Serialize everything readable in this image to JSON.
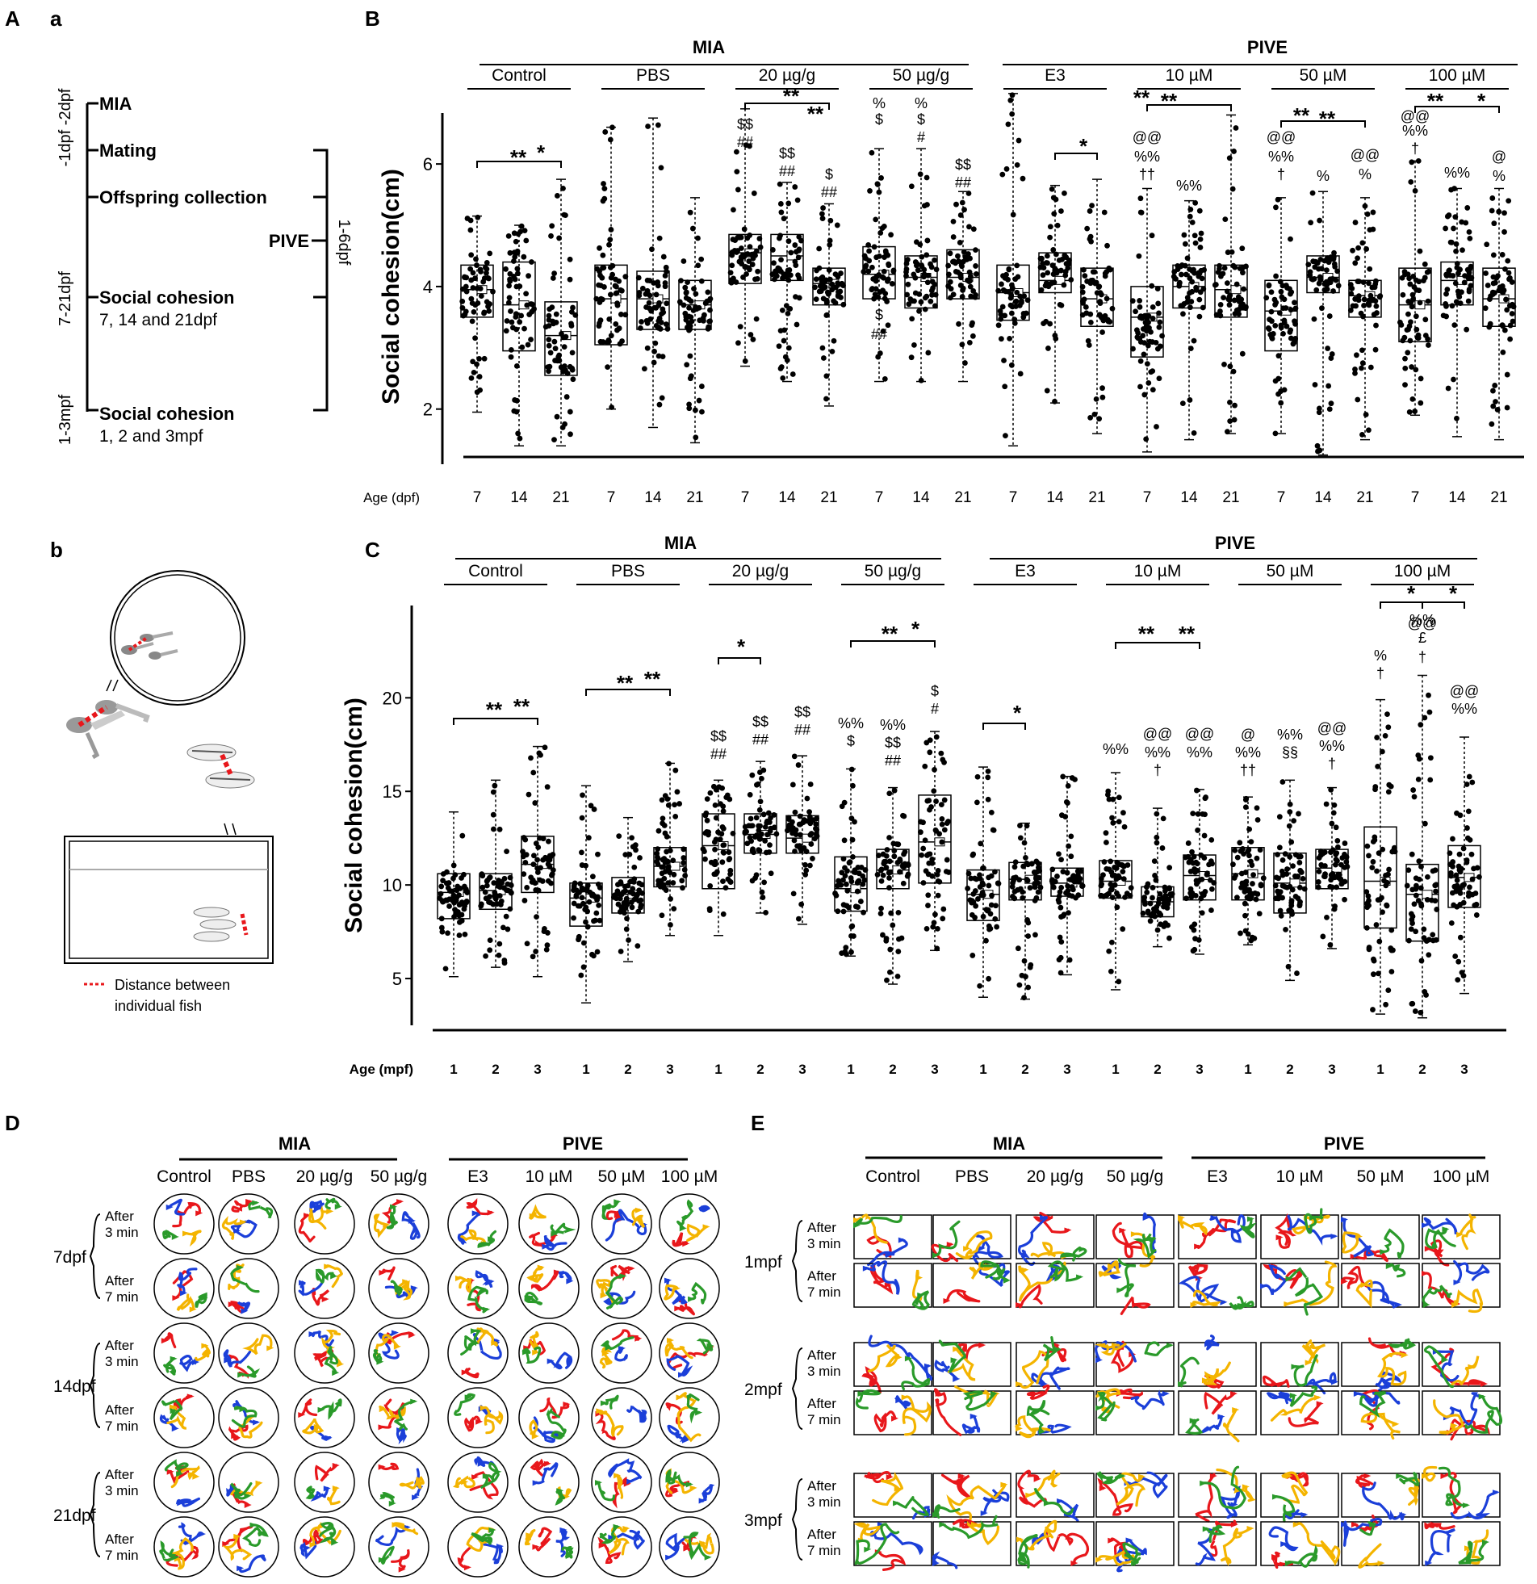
{
  "panel_labels": {
    "A": "A",
    "a": "a",
    "b": "b",
    "B": "B",
    "C": "C",
    "D": "D",
    "E": "E"
  },
  "timeline": {
    "events": [
      {
        "label": "MIA",
        "time": "-1dpf -2dpf",
        "sub": ""
      },
      {
        "label": "Mating",
        "time": "",
        "sub": ""
      },
      {
        "label": "Offspring collection",
        "time": "",
        "sub": ""
      },
      {
        "label": "Social cohesion",
        "time": "7-21dpf",
        "sub": "7, 14 and 21dpf"
      },
      {
        "label": "Social cohesion",
        "time": "1-3mpf",
        "sub": "1, 2 and 3mpf"
      }
    ],
    "pive_label": "PIVE",
    "pive_range": "1-6dpf"
  },
  "schematic": {
    "legend": "Distance between",
    "legend2": "individual fish",
    "line_color": "#e8171b"
  },
  "groups": {
    "mia": {
      "label": "MIA",
      "items": [
        "Control",
        "PBS",
        "20 µg/g",
        "50 µg/g"
      ]
    },
    "pive": {
      "label": "PIVE",
      "items": [
        "E3",
        "10 µM",
        "50 µM",
        "100 µM"
      ]
    }
  },
  "chart_data": [
    {
      "type": "box",
      "panel": "B",
      "ylabel": "Social cohesion(cm)",
      "xlabel": "Age (dpf)",
      "ages": [
        "7",
        "14",
        "21"
      ],
      "yticks": [
        2,
        4,
        6
      ],
      "ylim": [
        1.1,
        6.7
      ],
      "groups": [
        "Control",
        "PBS",
        "20 µg/g",
        "50 µg/g",
        "E3",
        "10 µM",
        "50 µM",
        "100 µM"
      ],
      "boxes": [
        {
          "q1": 3.5,
          "med": 3.95,
          "q3": 4.35,
          "min": 1.95,
          "max": 5.15
        },
        {
          "q1": 2.95,
          "med": 3.7,
          "q3": 4.4,
          "min": 1.4,
          "max": 5.0
        },
        {
          "q1": 2.55,
          "med": 3.2,
          "q3": 3.75,
          "min": 1.4,
          "max": 5.75
        },
        {
          "q1": 3.05,
          "med": 3.8,
          "q3": 4.35,
          "min": 2.0,
          "max": 6.6
        },
        {
          "q1": 3.3,
          "med": 3.8,
          "q3": 4.25,
          "min": 1.7,
          "max": 6.75
        },
        {
          "q1": 3.3,
          "med": 3.7,
          "q3": 4.1,
          "min": 1.45,
          "max": 5.45
        },
        {
          "q1": 4.05,
          "med": 4.55,
          "q3": 4.85,
          "min": 2.7,
          "max": 6.9
        },
        {
          "q1": 4.1,
          "med": 4.5,
          "q3": 4.85,
          "min": 2.45,
          "max": 5.7
        },
        {
          "q1": 3.7,
          "med": 4.05,
          "q3": 4.3,
          "min": 2.05,
          "max": 5.35
        },
        {
          "q1": 3.8,
          "med": 4.2,
          "q3": 4.65,
          "min": 2.45,
          "max": 6.25
        },
        {
          "q1": 3.65,
          "med": 4.15,
          "q3": 4.5,
          "min": 2.45,
          "max": 6.25
        },
        {
          "q1": 3.8,
          "med": 4.15,
          "q3": 4.6,
          "min": 2.45,
          "max": 5.55
        },
        {
          "q1": 3.45,
          "med": 3.9,
          "q3": 4.35,
          "min": 1.4,
          "max": 7.15
        },
        {
          "q1": 3.9,
          "med": 4.1,
          "q3": 4.55,
          "min": 2.1,
          "max": 5.65
        },
        {
          "q1": 3.35,
          "med": 3.8,
          "q3": 4.3,
          "min": 1.6,
          "max": 5.75
        },
        {
          "q1": 2.85,
          "med": 3.5,
          "q3": 4.0,
          "min": 1.3,
          "max": 5.6
        },
        {
          "q1": 3.65,
          "med": 4.0,
          "q3": 4.35,
          "min": 1.5,
          "max": 5.4
        },
        {
          "q1": 3.5,
          "med": 3.95,
          "q3": 4.35,
          "min": 1.6,
          "max": 6.8
        },
        {
          "q1": 2.95,
          "med": 3.6,
          "q3": 4.1,
          "min": 1.6,
          "max": 5.45
        },
        {
          "q1": 3.9,
          "med": 4.15,
          "q3": 4.5,
          "min": 1.25,
          "max": 5.55
        },
        {
          "q1": 3.5,
          "med": 3.85,
          "q3": 4.1,
          "min": 1.5,
          "max": 5.45
        },
        {
          "q1": 3.1,
          "med": 3.7,
          "q3": 4.3,
          "min": 1.9,
          "max": 6.05
        },
        {
          "q1": 3.7,
          "med": 4.1,
          "q3": 4.4,
          "min": 1.55,
          "max": 5.6
        },
        {
          "q1": 3.35,
          "med": 3.8,
          "q3": 4.3,
          "min": 1.5,
          "max": 5.6
        }
      ],
      "annotations": [
        "$$",
        "##",
        "$$",
        "##",
        "$",
        "##",
        "%",
        "$",
        "$",
        "##",
        "%",
        "$",
        "#",
        "$$",
        "##",
        "@@",
        "%%",
        "††",
        "%%",
        "@@",
        "%%",
        "†",
        "%",
        "@@",
        "%",
        "@@",
        "%%",
        "†",
        "%%",
        "@",
        "%"
      ],
      "sig": [
        "**",
        "*",
        "**",
        "**",
        "*",
        "**",
        "**",
        "**",
        "**",
        "**",
        "*"
      ]
    },
    {
      "type": "box",
      "panel": "C",
      "ylabel": "Social cohesion(cm)",
      "xlabel": "Age (mpf)",
      "ages": [
        "1",
        "2",
        "3"
      ],
      "yticks": [
        5,
        10,
        15,
        20
      ],
      "ylim": [
        2.5,
        24.5
      ],
      "groups": [
        "Control",
        "PBS",
        "20 µg/g",
        "50 µg/g",
        "E3",
        "10 µM",
        "50 µM",
        "100 µM"
      ],
      "boxes": [
        {
          "q1": 8.2,
          "med": 9.6,
          "q3": 10.6,
          "min": 5.1,
          "max": 13.9
        },
        {
          "q1": 8.7,
          "med": 9.7,
          "q3": 10.6,
          "min": 5.6,
          "max": 15.6
        },
        {
          "q1": 9.6,
          "med": 11.1,
          "q3": 12.6,
          "min": 5.1,
          "max": 17.4
        },
        {
          "q1": 7.8,
          "med": 9.3,
          "q3": 10.1,
          "min": 3.7,
          "max": 15.3
        },
        {
          "q1": 8.5,
          "med": 9.5,
          "q3": 10.4,
          "min": 5.9,
          "max": 13.6
        },
        {
          "q1": 9.9,
          "med": 11.0,
          "q3": 12.0,
          "min": 7.3,
          "max": 16.5
        },
        {
          "q1": 9.8,
          "med": 12.1,
          "q3": 13.8,
          "min": 7.3,
          "max": 15.6
        },
        {
          "q1": 11.7,
          "med": 12.7,
          "q3": 13.8,
          "min": 8.5,
          "max": 16.6
        },
        {
          "q1": 11.7,
          "med": 12.5,
          "q3": 13.7,
          "min": 7.9,
          "max": 16.9
        },
        {
          "q1": 8.6,
          "med": 9.8,
          "q3": 11.5,
          "min": 6.2,
          "max": 16.2
        },
        {
          "q1": 9.8,
          "med": 10.8,
          "q3": 11.9,
          "min": 4.7,
          "max": 15.2
        },
        {
          "q1": 10.1,
          "med": 12.3,
          "q3": 14.8,
          "min": 6.5,
          "max": 18.2
        },
        {
          "q1": 8.1,
          "med": 9.5,
          "q3": 10.8,
          "min": 4.0,
          "max": 16.3
        },
        {
          "q1": 9.2,
          "med": 10.3,
          "q3": 11.2,
          "min": 3.9,
          "max": 13.3
        },
        {
          "q1": 9.4,
          "med": 10.1,
          "q3": 10.9,
          "min": 5.2,
          "max": 15.8
        },
        {
          "q1": 9.3,
          "med": 10.2,
          "q3": 11.3,
          "min": 4.4,
          "max": 16.0
        },
        {
          "q1": 8.3,
          "med": 9.1,
          "q3": 9.9,
          "min": 6.7,
          "max": 14.1
        },
        {
          "q1": 9.2,
          "med": 10.5,
          "q3": 11.6,
          "min": 6.3,
          "max": 15.1
        },
        {
          "q1": 9.2,
          "med": 10.6,
          "q3": 12.0,
          "min": 6.8,
          "max": 14.7
        },
        {
          "q1": 8.5,
          "med": 10.1,
          "q3": 11.7,
          "min": 4.9,
          "max": 15.6
        },
        {
          "q1": 9.8,
          "med": 10.9,
          "q3": 11.9,
          "min": 6.6,
          "max": 15.2
        },
        {
          "q1": 7.7,
          "med": 10.2,
          "q3": 13.1,
          "min": 3.1,
          "max": 19.9
        },
        {
          "q1": 7.0,
          "med": 9.5,
          "q3": 11.1,
          "min": 2.9,
          "max": 21.2
        },
        {
          "q1": 8.8,
          "med": 10.4,
          "q3": 12.1,
          "min": 4.2,
          "max": 17.9
        }
      ],
      "annotations": [
        "$$",
        "##",
        "$$",
        "##",
        "$$",
        "##",
        "%%",
        "$",
        "%%",
        "$$",
        "##",
        "$",
        "#",
        "%%",
        "@@",
        "%%",
        "†",
        "@@",
        "%%",
        "@",
        "%%",
        "††",
        "%%",
        "§§",
        "@@",
        "%%",
        "†",
        "%",
        "†",
        "@@",
        "%%",
        "£",
        "†",
        "@@",
        "%%"
      ],
      "sig": [
        "**",
        "**",
        "**",
        "**",
        "*",
        "**",
        "*",
        "*",
        "**",
        "**",
        "*",
        "*"
      ]
    }
  ],
  "tracks": {
    "D": {
      "rows": [
        "7dpf",
        "14dpf",
        "21dpf"
      ],
      "sub": [
        [
          "After",
          "3 min"
        ],
        [
          "After",
          "7 min"
        ]
      ]
    },
    "E": {
      "rows": [
        "1mpf",
        "2mpf",
        "3mpf"
      ],
      "sub": [
        [
          "After",
          "3 min"
        ],
        [
          "After",
          "7 min"
        ]
      ]
    },
    "colors": [
      "#e8171b",
      "#1b3fd9",
      "#f4b400",
      "#2a9a2a"
    ]
  }
}
